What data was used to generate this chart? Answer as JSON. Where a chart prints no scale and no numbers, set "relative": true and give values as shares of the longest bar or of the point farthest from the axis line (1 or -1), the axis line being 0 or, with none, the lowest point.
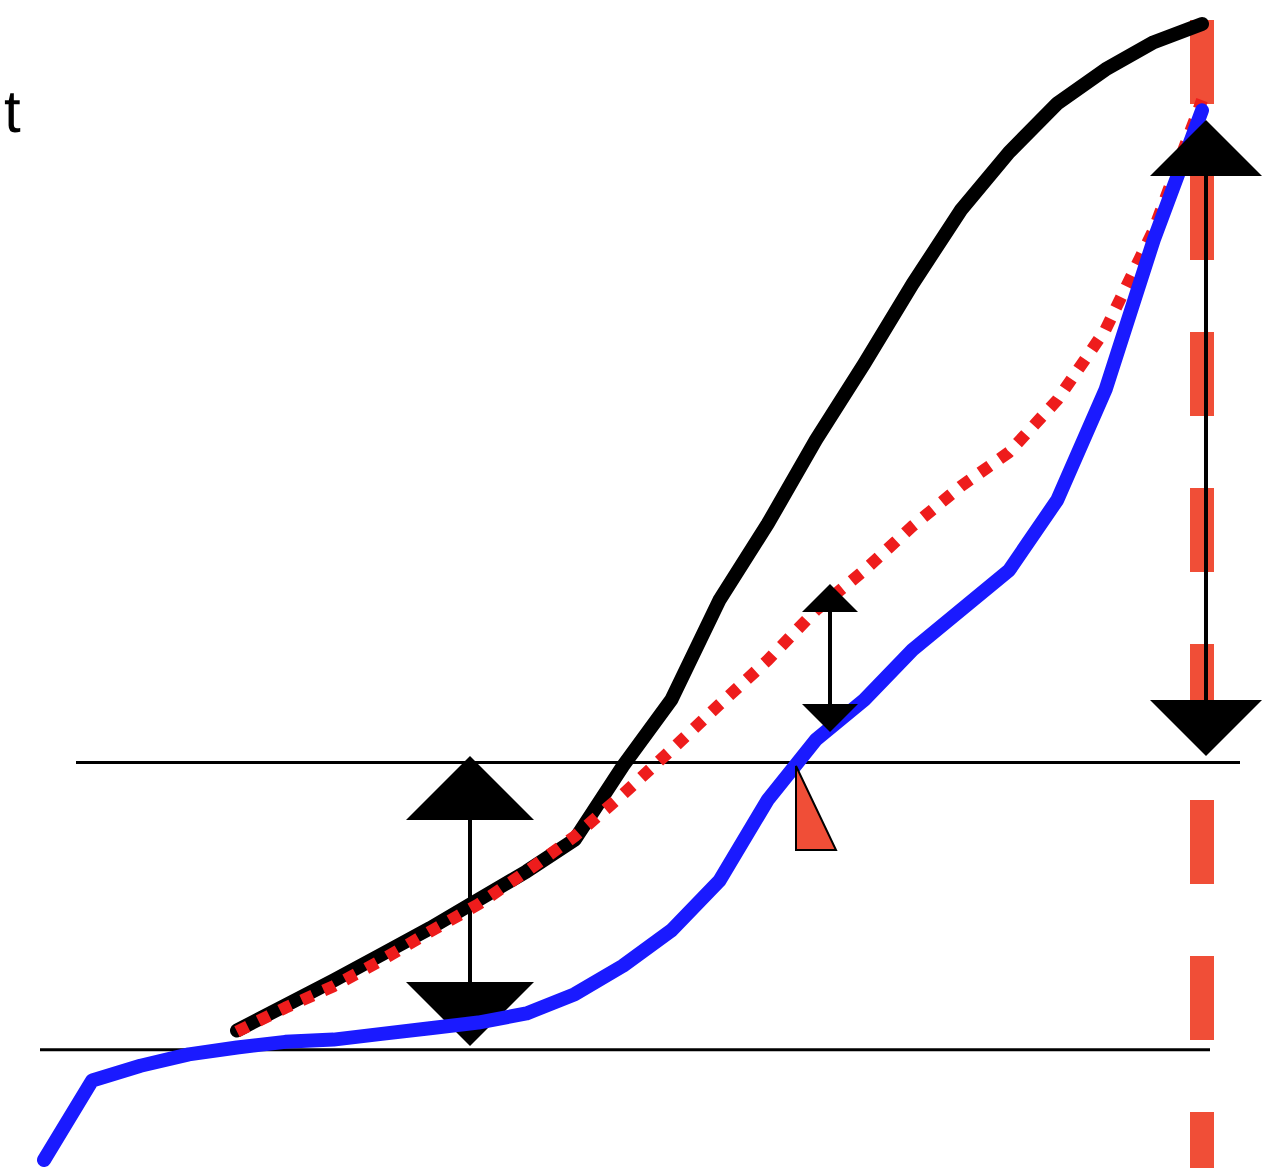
{
  "chart_data": {
    "type": "line",
    "relative": true,
    "annotations": [
      "t"
    ],
    "categories": [
      null,
      null,
      null,
      null,
      null,
      null,
      null,
      null,
      null,
      null,
      null,
      null,
      null,
      null,
      null,
      null,
      null,
      null,
      null,
      null,
      null,
      null,
      null,
      null,
      null
    ],
    "series": [
      {
        "color": "#000000",
        "line_style": "solid",
        "values": [
          null,
          null,
          null,
          null,
          0.114,
          0.136,
          0.158,
          0.181,
          0.204,
          0.229,
          0.254,
          0.282,
          0.347,
          0.405,
          0.493,
          0.56,
          0.634,
          0.701,
          0.771,
          0.836,
          0.887,
          0.93,
          0.96,
          0.984,
          1
        ]
      },
      {
        "color": "#ee1c1c",
        "line_style": "dotted",
        "values": [
          null,
          null,
          null,
          null,
          0.113,
          0.134,
          0.153,
          0.176,
          0.201,
          0.225,
          0.254,
          0.285,
          0.322,
          0.361,
          0.401,
          0.44,
          0.484,
          0.519,
          0.558,
          0.593,
          0.623,
          0.669,
          0.731,
          0.819,
          0.933
        ]
      },
      {
        "color": "#1a1aff",
        "line_style": "solid",
        "values": [
          0,
          0.07,
          0.083,
          0.093,
          0.099,
          0.104,
          0.106,
          0.111,
          0.116,
          0.121,
          0.129,
          0.146,
          0.171,
          0.202,
          0.246,
          0.317,
          0.37,
          0.405,
          0.449,
          0.484,
          0.519,
          0.581,
          0.678,
          0.81,
          0.924
        ]
      }
    ],
    "ref_lines": [
      {
        "axis": "y",
        "value": 0.35,
        "color": "#000000",
        "line_style": "solid"
      },
      {
        "axis": "y",
        "value": 0.097,
        "color": "#000000",
        "line_style": "solid"
      }
    ]
  }
}
